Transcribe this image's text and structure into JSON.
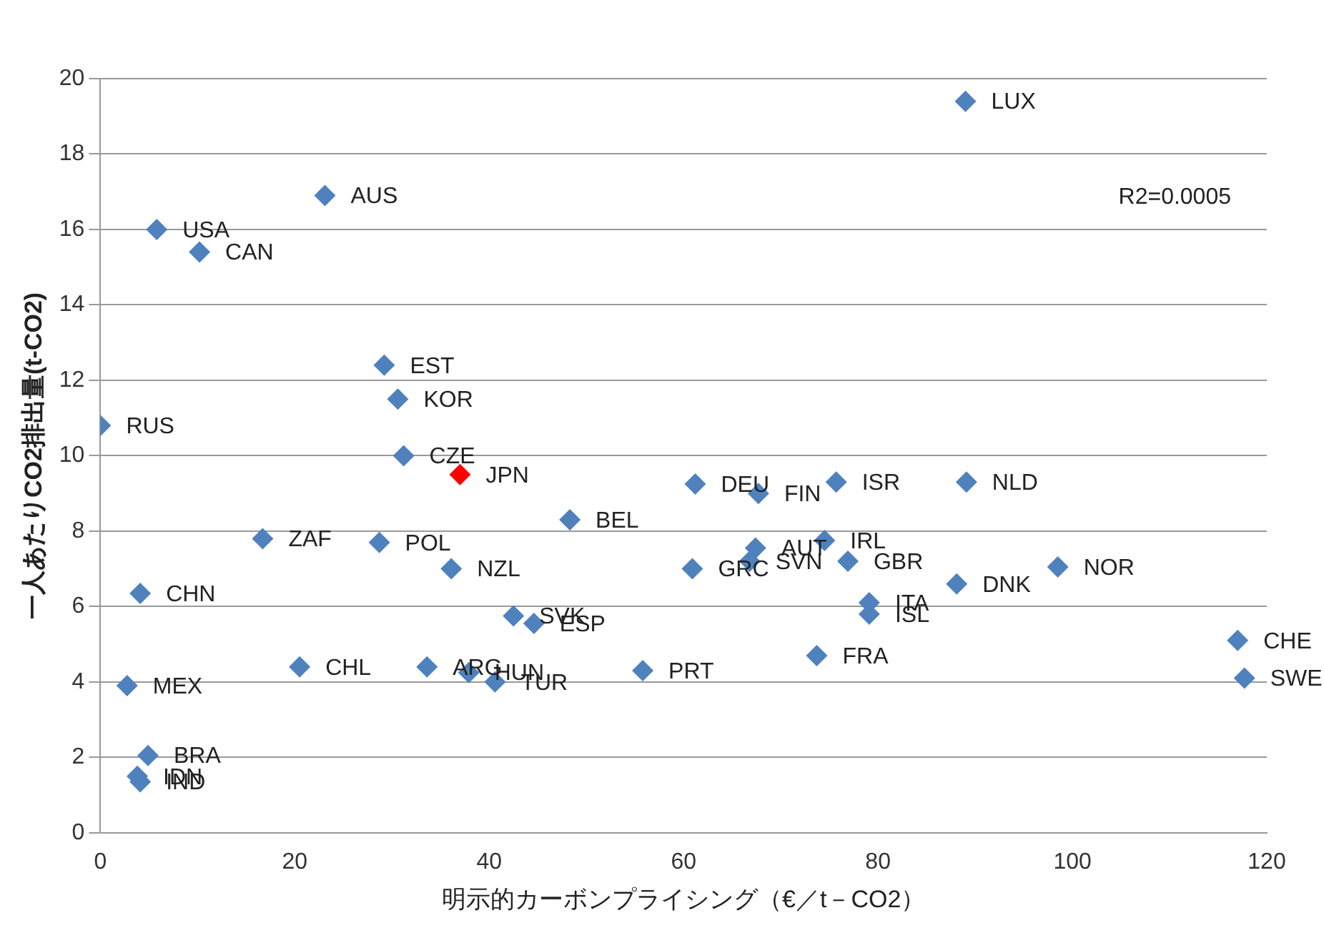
{
  "chart_data": {
    "type": "scatter",
    "xlabel": "明示的カーボンプライシング（€／t－CO2）",
    "ylabel": "一人あたりCO2排出量(t-CO2)",
    "x": [
      89.0,
      23.1,
      5.8,
      10.2,
      29.2,
      30.6,
      0,
      31.2,
      37.0,
      48.3,
      61.2,
      67.7,
      75.7,
      89.1,
      16.7,
      28.7,
      36.1,
      4.1,
      60.9,
      67.4,
      66.8,
      74.5,
      76.9,
      88.1,
      98.5,
      79.1,
      79.1,
      42.5,
      44.6,
      73.7,
      55.8,
      117.0,
      117.7,
      20.5,
      33.6,
      37.9,
      40.6,
      2.75,
      4.9,
      3.8,
      4.1
    ],
    "values": [
      19.4,
      16.9,
      16.0,
      15.4,
      12.4,
      11.5,
      10.8,
      10.0,
      9.5,
      8.3,
      9.25,
      9.0,
      9.3,
      9.3,
      7.8,
      7.7,
      7.0,
      6.35,
      7.0,
      7.55,
      7.2,
      7.75,
      7.2,
      6.6,
      7.05,
      6.1,
      5.8,
      5.75,
      5.55,
      4.7,
      4.3,
      5.1,
      4.1,
      4.4,
      4.4,
      4.25,
      4.0,
      3.9,
      2.05,
      1.5,
      1.35
    ],
    "colors": [
      "#4f81bd",
      "#4f81bd",
      "#4f81bd",
      "#4f81bd",
      "#4f81bd",
      "#4f81bd",
      "#4f81bd",
      "#4f81bd",
      "#ff0000",
      "#4f81bd",
      "#4f81bd",
      "#4f81bd",
      "#4f81bd",
      "#4f81bd",
      "#4f81bd",
      "#4f81bd",
      "#4f81bd",
      "#4f81bd",
      "#4f81bd",
      "#4f81bd",
      "#4f81bd",
      "#4f81bd",
      "#4f81bd",
      "#4f81bd",
      "#4f81bd",
      "#4f81bd",
      "#4f81bd",
      "#4f81bd",
      "#4f81bd",
      "#4f81bd",
      "#4f81bd",
      "#4f81bd",
      "#4f81bd",
      "#4f81bd",
      "#4f81bd",
      "#4f81bd",
      "#4f81bd",
      "#4f81bd",
      "#4f81bd",
      "#4f81bd",
      "#4f81bd"
    ],
    "annotations": [
      {
        "text": "LUX",
        "x": 89.0,
        "y": 19.4
      },
      {
        "text": "AUS",
        "x": 23.1,
        "y": 16.9
      },
      {
        "text": "USA",
        "x": 5.8,
        "y": 16.0
      },
      {
        "text": "CAN",
        "x": 10.2,
        "y": 15.4
      },
      {
        "text": "EST",
        "x": 29.2,
        "y": 12.4
      },
      {
        "text": "KOR",
        "x": 30.6,
        "y": 11.5
      },
      {
        "text": "RUS",
        "x": 0,
        "y": 10.8
      },
      {
        "text": "CZE",
        "x": 31.2,
        "y": 10.0
      },
      {
        "text": "JPN",
        "x": 37.0,
        "y": 9.5
      },
      {
        "text": "BEL",
        "x": 48.3,
        "y": 8.3
      },
      {
        "text": "DEU",
        "x": 61.2,
        "y": 9.25
      },
      {
        "text": "FIN",
        "x": 67.7,
        "y": 9.0
      },
      {
        "text": "ISR",
        "x": 75.7,
        "y": 9.3
      },
      {
        "text": "NLD",
        "x": 89.1,
        "y": 9.3
      },
      {
        "text": "ZAF",
        "x": 16.7,
        "y": 7.8
      },
      {
        "text": "POL",
        "x": 28.7,
        "y": 7.7
      },
      {
        "text": "NZL",
        "x": 36.1,
        "y": 7.0
      },
      {
        "text": "CHN",
        "x": 4.1,
        "y": 6.35
      },
      {
        "text": "GRC",
        "x": 60.9,
        "y": 7.0
      },
      {
        "text": "AUT",
        "x": 67.4,
        "y": 7.55
      },
      {
        "text": "SVN",
        "x": 66.8,
        "y": 7.2
      },
      {
        "text": "IRL",
        "x": 74.5,
        "y": 7.75
      },
      {
        "text": "GBR",
        "x": 76.9,
        "y": 7.2
      },
      {
        "text": "DNK",
        "x": 88.1,
        "y": 6.6
      },
      {
        "text": "NOR",
        "x": 98.5,
        "y": 7.05
      },
      {
        "text": "ITA",
        "x": 79.1,
        "y": 6.1
      },
      {
        "text": "ISL",
        "x": 79.1,
        "y": 5.8
      },
      {
        "text": "SVK",
        "x": 42.5,
        "y": 5.75
      },
      {
        "text": "ESP",
        "x": 44.6,
        "y": 5.55
      },
      {
        "text": "FRA",
        "x": 73.7,
        "y": 4.7
      },
      {
        "text": "PRT",
        "x": 55.8,
        "y": 4.3
      },
      {
        "text": "CHE",
        "x": 117.0,
        "y": 5.1
      },
      {
        "text": "SWE",
        "x": 117.7,
        "y": 4.1
      },
      {
        "text": "CHL",
        "x": 20.5,
        "y": 4.4
      },
      {
        "text": "ARG",
        "x": 33.6,
        "y": 4.4
      },
      {
        "text": "HUN",
        "x": 37.9,
        "y": 4.25
      },
      {
        "text": "TUR",
        "x": 40.6,
        "y": 4.0
      },
      {
        "text": "MEX",
        "x": 2.75,
        "y": 3.9
      },
      {
        "text": "BRA",
        "x": 4.9,
        "y": 2.05
      },
      {
        "text": "IDN",
        "x": 3.8,
        "y": 1.5
      },
      {
        "text": "IND",
        "x": 4.1,
        "y": 1.35
      },
      "R2=0.0005"
    ],
    "xlim": [
      0,
      120
    ],
    "xticks": [
      0,
      20,
      40,
      60,
      80,
      100,
      120
    ],
    "ylim": [
      0,
      20
    ],
    "yticks": [
      0,
      2,
      4,
      6,
      8,
      10,
      12,
      14,
      16,
      18,
      20
    ],
    "grid": "y",
    "legend": false,
    "marker": "diamond"
  }
}
